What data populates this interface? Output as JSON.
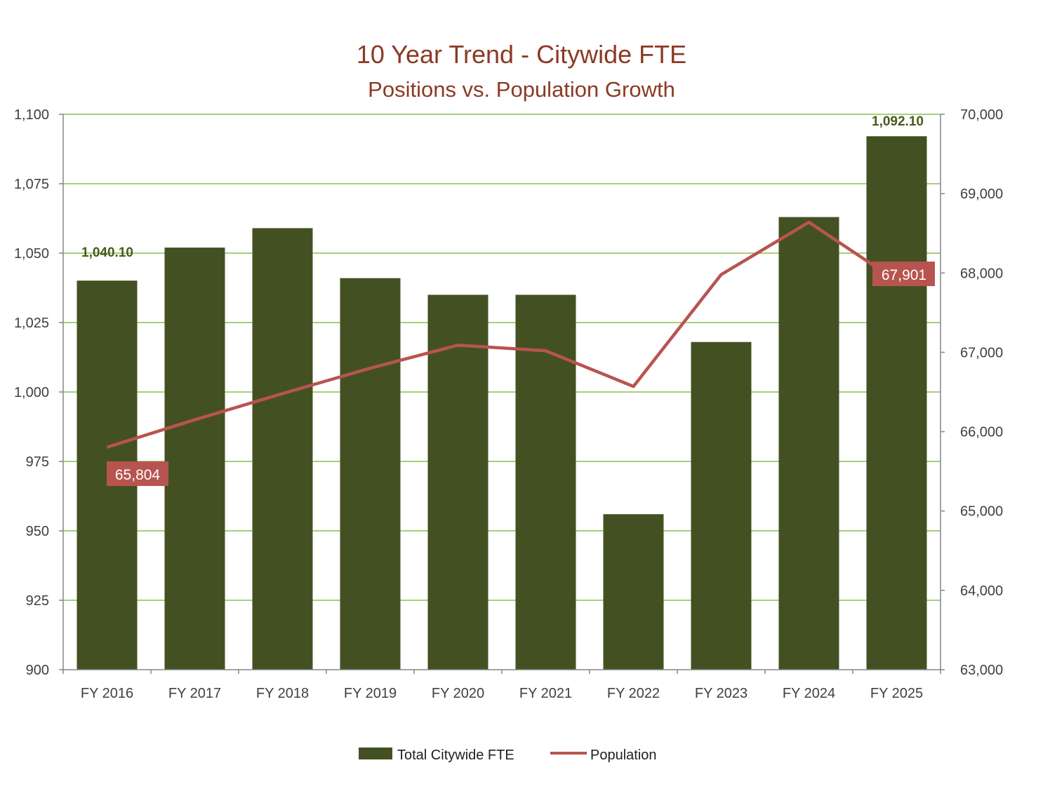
{
  "chart_data": {
    "type": "bar+line",
    "title": "10 Year Trend - Citywide FTE",
    "subtitle": "Positions vs. Population Growth",
    "categories": [
      "FY 2016",
      "FY 2017",
      "FY 2018",
      "FY 2019",
      "FY 2020",
      "FY 2021",
      "FY 2022",
      "FY 2023",
      "FY 2024",
      "FY 2025"
    ],
    "series": [
      {
        "name": "Total Citywide FTE",
        "type": "bar",
        "axis": "left",
        "color": "#435122",
        "values": [
          1040.1,
          1052,
          1059,
          1041,
          1035,
          1035,
          956,
          1018,
          1063,
          1092.1
        ]
      },
      {
        "name": "Population",
        "type": "line",
        "axis": "right",
        "color": "#b85450",
        "values": [
          65804,
          66150,
          66480,
          66800,
          67090,
          67020,
          66570,
          67980,
          68640,
          67901
        ]
      }
    ],
    "left_axis": {
      "ylim": [
        900,
        1100
      ],
      "ticks": [
        "900",
        "925",
        "950",
        "975",
        "1,000",
        "1,025",
        "1,050",
        "1,075",
        "1,100"
      ]
    },
    "right_axis": {
      "ylim": [
        63000,
        70000
      ],
      "ticks": [
        "63,000",
        "64,000",
        "65,000",
        "66,000",
        "67,000",
        "68,000",
        "69,000",
        "70,000"
      ]
    },
    "annotations": {
      "fte_first": "1,040.10",
      "fte_last": "1,092.10",
      "pop_first": "65,804",
      "pop_last": "67,901"
    },
    "legend": {
      "position": "bottom",
      "items": [
        "Total Citywide FTE",
        "Population"
      ]
    },
    "grid": true,
    "gridColor": "#8cbf4e"
  }
}
